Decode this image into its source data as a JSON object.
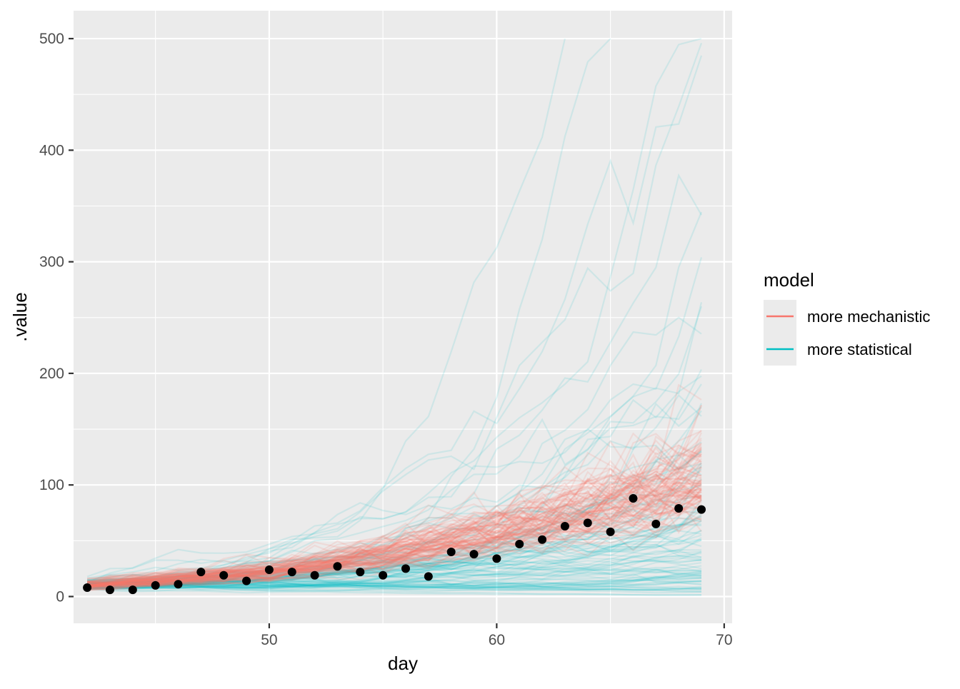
{
  "chart_data": {
    "type": "line",
    "xlabel": "day",
    "ylabel": ".value",
    "xlim": [
      41.4,
      70.35
    ],
    "ylim": [
      -24,
      525
    ],
    "x_ticks": [
      50,
      60,
      70
    ],
    "y_ticks": [
      0,
      100,
      200,
      300,
      400,
      500
    ],
    "x_tick_labels": [
      "50",
      "60",
      "70"
    ],
    "y_tick_labels": [
      "0",
      "100",
      "200",
      "300",
      "400",
      "500"
    ],
    "x_minor_ticks": [
      45,
      55,
      65
    ],
    "y_minor_ticks": [
      50,
      150,
      250,
      350,
      450
    ],
    "panel_background": "#ebebeb",
    "grid_color": "#ffffff",
    "grid": true,
    "legend_position": "right",
    "legend": {
      "title": "model",
      "entries": [
        {
          "label": "more mechanistic",
          "color": "#F8766D"
        },
        {
          "label": "more statistical",
          "color": "#00BFC4"
        }
      ]
    },
    "series": [
      {
        "name": "more mechanistic",
        "color": "#F8766D",
        "trajectory_count": 100,
        "day_range": [
          42,
          69
        ],
        "opacity": 0.15,
        "center": {
          "x": [
            42,
            50,
            55,
            60,
            65,
            69
          ],
          "y": [
            10,
            22,
            37,
            58,
            82,
            105
          ]
        },
        "spread_fraction": 0.3
      },
      {
        "name": "more statistical",
        "color": "#00BFC4",
        "trajectory_count": 100,
        "day_range": [
          42,
          69
        ],
        "opacity": 0.12,
        "median_growth_per_day": 0.06,
        "max_plotted_value": 500
      }
    ],
    "observed_points": {
      "color": "#000000",
      "x": [
        42,
        43,
        44,
        45,
        46,
        47,
        48,
        49,
        50,
        51,
        52,
        53,
        54,
        55,
        56,
        57,
        58,
        59,
        60,
        61,
        62,
        63,
        64,
        65,
        66,
        67,
        68,
        69
      ],
      "y": [
        8,
        6,
        6,
        10,
        11,
        22,
        19,
        14,
        24,
        22,
        19,
        27,
        22,
        19,
        25,
        18,
        40,
        38,
        34,
        47,
        51,
        63,
        66,
        58,
        88,
        65,
        79,
        78
      ]
    }
  }
}
